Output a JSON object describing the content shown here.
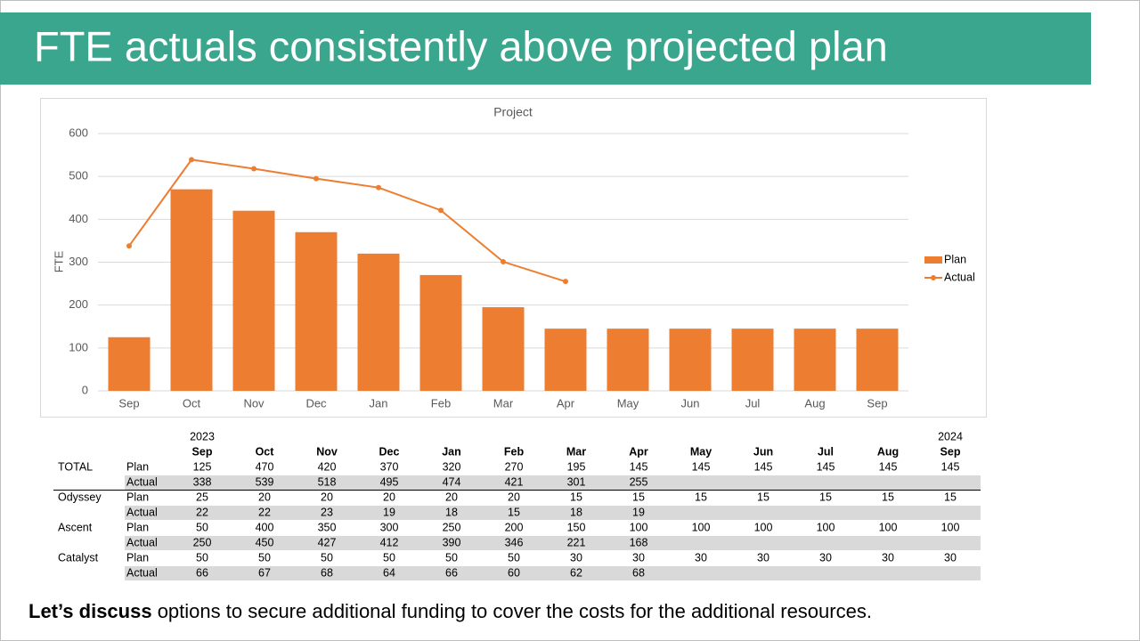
{
  "slide_title": "FTE actuals consistently above projected plan",
  "chart_data": {
    "type": "combo",
    "title": "Project",
    "ylabel": "FTE",
    "categories": [
      "Sep",
      "Oct",
      "Nov",
      "Dec",
      "Jan",
      "Feb",
      "Mar",
      "Apr",
      "May",
      "Jun",
      "Jul",
      "Aug",
      "Sep"
    ],
    "series": [
      {
        "name": "Plan",
        "type": "bar",
        "color": "#ed7d31",
        "values": [
          125,
          470,
          420,
          370,
          320,
          270,
          195,
          145,
          145,
          145,
          145,
          145,
          145
        ]
      },
      {
        "name": "Actual",
        "type": "line",
        "color": "#ed7d31",
        "values": [
          338,
          539,
          518,
          495,
          474,
          421,
          301,
          255,
          null,
          null,
          null,
          null,
          null
        ]
      }
    ],
    "ylim": [
      0,
      600
    ],
    "yticks": [
      0,
      100,
      200,
      300,
      400,
      500,
      600
    ],
    "grid": true,
    "legend": "right"
  },
  "table": {
    "years": [
      "2023",
      null,
      null,
      null,
      null,
      null,
      null,
      null,
      null,
      null,
      null,
      null,
      "2024"
    ],
    "columns": [
      "Sep",
      "Oct",
      "Nov",
      "Dec",
      "Jan",
      "Feb",
      "Mar",
      "Apr",
      "May",
      "Jun",
      "Jul",
      "Aug",
      "Sep"
    ],
    "rows": [
      {
        "group": "TOTAL",
        "label": "Plan",
        "values": [
          125,
          470,
          420,
          370,
          320,
          270,
          195,
          145,
          145,
          145,
          145,
          145,
          145
        ]
      },
      {
        "group": null,
        "label": "Actual",
        "values": [
          338,
          539,
          518,
          495,
          474,
          421,
          301,
          255,
          null,
          null,
          null,
          null,
          null
        ]
      },
      {
        "group": "Odyssey",
        "label": "Plan",
        "values": [
          25,
          20,
          20,
          20,
          20,
          20,
          15,
          15,
          15,
          15,
          15,
          15,
          15
        ]
      },
      {
        "group": null,
        "label": "Actual",
        "values": [
          22,
          22,
          23,
          19,
          18,
          15,
          18,
          19,
          null,
          null,
          null,
          null,
          null
        ]
      },
      {
        "group": "Ascent",
        "label": "Plan",
        "values": [
          50,
          400,
          350,
          300,
          250,
          200,
          150,
          100,
          100,
          100,
          100,
          100,
          100
        ]
      },
      {
        "group": null,
        "label": "Actual",
        "values": [
          250,
          450,
          427,
          412,
          390,
          346,
          221,
          168,
          null,
          null,
          null,
          null,
          null
        ]
      },
      {
        "group": "Catalyst",
        "label": "Plan",
        "values": [
          50,
          50,
          50,
          50,
          50,
          50,
          30,
          30,
          30,
          30,
          30,
          30,
          30
        ]
      },
      {
        "group": null,
        "label": "Actual",
        "values": [
          66,
          67,
          68,
          64,
          66,
          60,
          62,
          68,
          null,
          null,
          null,
          null,
          null
        ]
      }
    ]
  },
  "footer": {
    "bold": "Let’s discuss",
    "text": " options to secure additional funding to cover the costs for the additional resources."
  }
}
